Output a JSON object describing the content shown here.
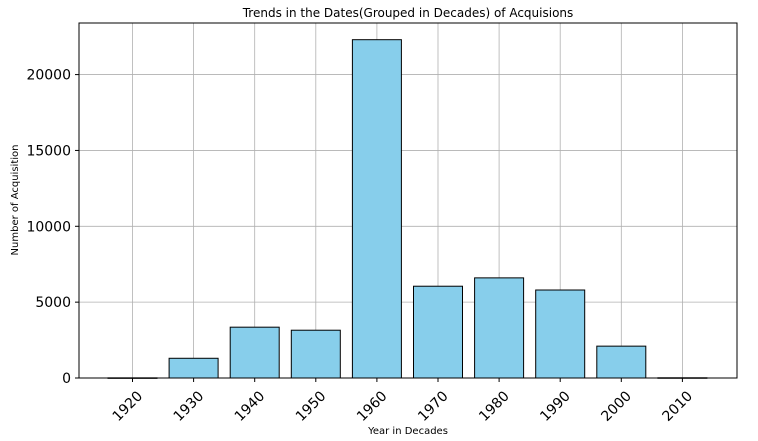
{
  "chart_data": {
    "type": "bar",
    "title": "Trends in the Dates(Grouped in Decades) of Acquisions",
    "xlabel": "Year in Decades",
    "ylabel": "Number of Acquisition",
    "categories": [
      "1920",
      "1930",
      "1940",
      "1950",
      "1960",
      "1970",
      "1980",
      "1990",
      "2000",
      "2010"
    ],
    "values": [
      10,
      1300,
      3350,
      3150,
      22300,
      6050,
      6600,
      5800,
      2100,
      15
    ],
    "yticks": [
      0,
      5000,
      10000,
      15000,
      20000
    ],
    "ytick_labels": [
      "0",
      "5000",
      "10000",
      "15000",
      "20000"
    ],
    "ylim": [
      0,
      23400
    ],
    "grid": true,
    "bar_color": "#87ceeb",
    "edge_color": "#000000",
    "xtick_rotation_deg": -45
  }
}
